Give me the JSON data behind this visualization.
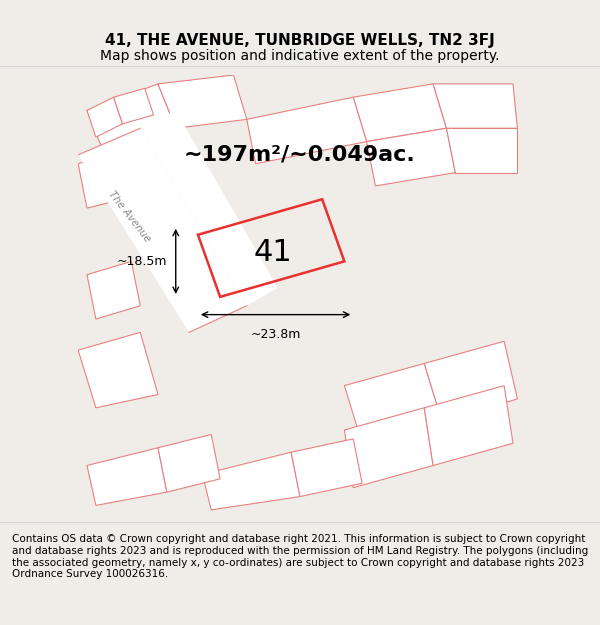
{
  "title_line1": "41, THE AVENUE, TUNBRIDGE WELLS, TN2 3FJ",
  "title_line2": "Map shows position and indicative extent of the property.",
  "area_text": "~197m²/~0.049ac.",
  "label_41": "41",
  "dim_width": "~23.8m",
  "dim_height": "~18.5m",
  "footer_text": "Contains OS data © Crown copyright and database right 2021. This information is subject to Crown copyright and database rights 2023 and is reproduced with the permission of HM Land Registry. The polygons (including the associated geometry, namely x, y co-ordinates) are subject to Crown copyright and database rights 2023 Ordnance Survey 100026316.",
  "bg_color": "#f0ede8",
  "map_bg_color": "#f5f2ed",
  "road_color": "#ffffff",
  "building_outline_color": "#e88080",
  "highlight_color": "#e83030",
  "street_label": "The Avenue",
  "street_label2": "The Avenue",
  "title_fontsize": 11,
  "subtitle_fontsize": 10,
  "area_fontsize": 16,
  "label_fontsize": 22,
  "footer_fontsize": 7.5
}
